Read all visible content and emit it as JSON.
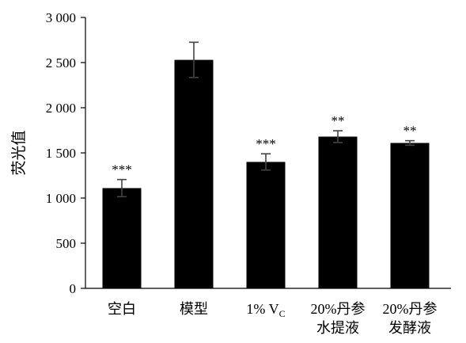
{
  "chart_data": {
    "type": "bar",
    "ylabel": "荧光值",
    "ylim": [
      0,
      3000
    ],
    "yticks": [
      0,
      500,
      1000,
      1500,
      2000,
      2500,
      3000
    ],
    "ytick_labels": [
      "0",
      "500",
      "1 000",
      "1 500",
      "2 000",
      "2 500",
      "3 000"
    ],
    "categories": [
      [
        "空白"
      ],
      [
        "模型"
      ],
      [
        "1% V",
        "C"
      ],
      [
        "20%丹参",
        "水提液"
      ],
      [
        "20%丹参",
        "发酵液"
      ]
    ],
    "values": [
      1110,
      2530,
      1400,
      1680,
      1610
    ],
    "errors": [
      95,
      195,
      90,
      65,
      25
    ],
    "significance": [
      "***",
      "",
      "***",
      "**",
      "**"
    ],
    "grid": false,
    "legend": "none",
    "colors": {
      "bar": "#000000",
      "error_bar": "#444444",
      "axis": "#000000"
    }
  }
}
